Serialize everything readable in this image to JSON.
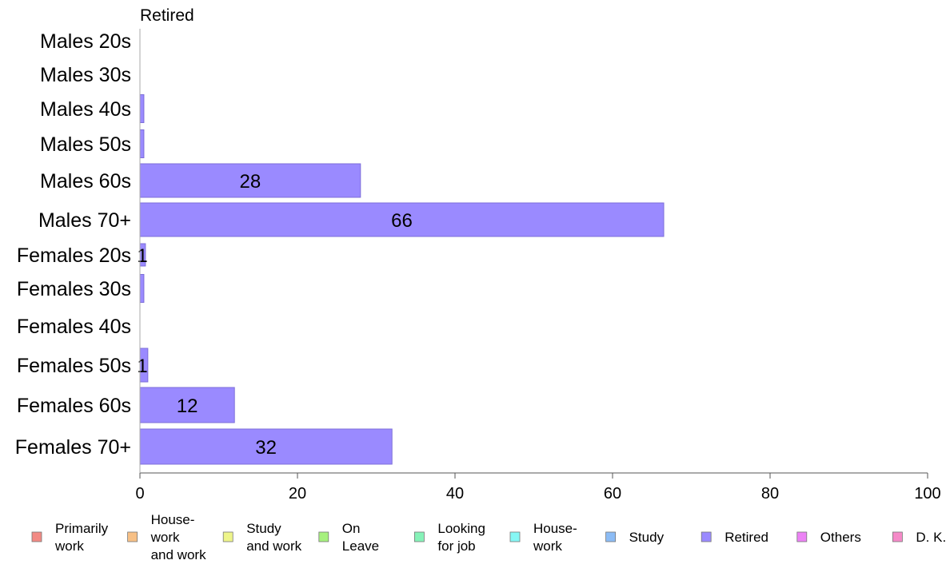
{
  "chart_data": {
    "type": "bar",
    "orientation": "horizontal",
    "panel_title": "Retired",
    "categories": [
      "Males 20s",
      "Males 30s",
      "Males 40s",
      "Males 50s",
      "Males 60s",
      "Males 70+",
      "Females 20s",
      "Females 30s",
      "Females 40s",
      "Females 50s",
      "Females 60s",
      "Females 70+"
    ],
    "values": [
      0,
      0,
      0.5,
      0.5,
      28,
      66.5,
      0.7,
      0.5,
      0,
      1,
      12,
      32
    ],
    "data_labels": [
      "",
      "",
      "",
      "",
      "28",
      "66",
      "1",
      "",
      "",
      "1",
      "12",
      "32"
    ],
    "xlim": [
      0,
      100
    ],
    "xticks": [
      0,
      20,
      40,
      60,
      80,
      100
    ],
    "xlabel": "",
    "ylabel": "",
    "grid": false,
    "bar_color": "#9a8aff",
    "bar_stroke": "#7d6fd9",
    "legend": {
      "placement": "bottom",
      "items": [
        {
          "lines": [
            "Primarily",
            "work"
          ],
          "color": "#f28a84"
        },
        {
          "lines": [
            "House-",
            "work",
            "and work"
          ],
          "color": "#f7c086"
        },
        {
          "lines": [
            "Study",
            "and work"
          ],
          "color": "#eef58a"
        },
        {
          "lines": [
            "On",
            "Leave"
          ],
          "color": "#a6f07e"
        },
        {
          "lines": [
            "Looking",
            "for job"
          ],
          "color": "#86f2b8"
        },
        {
          "lines": [
            "House-",
            "work"
          ],
          "color": "#86f7f5"
        },
        {
          "lines": [
            "Study"
          ],
          "color": "#8cbcf5"
        },
        {
          "lines": [
            "Retired"
          ],
          "color": "#9a8aff"
        },
        {
          "lines": [
            "Others"
          ],
          "color": "#ec82f5"
        },
        {
          "lines": [
            "D. K."
          ],
          "color": "#f58ac8"
        }
      ]
    }
  }
}
